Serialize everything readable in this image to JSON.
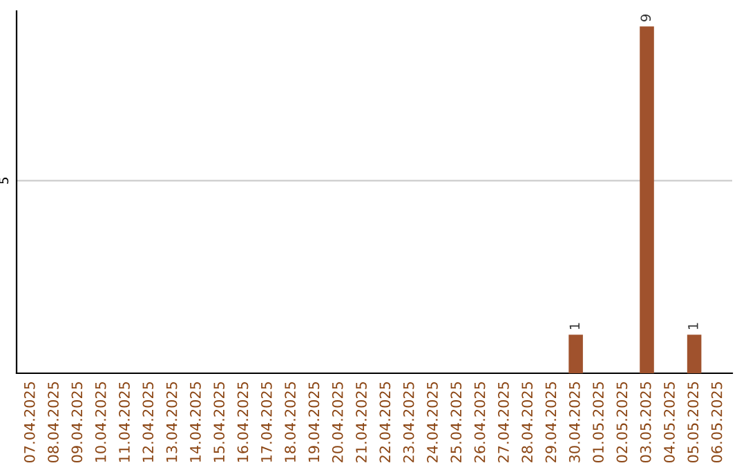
{
  "chart_data": {
    "type": "bar",
    "categories": [
      "07.04.2025",
      "08.04.2025",
      "09.04.2025",
      "10.04.2025",
      "11.04.2025",
      "12.04.2025",
      "13.04.2025",
      "14.04.2025",
      "15.04.2025",
      "16.04.2025",
      "17.04.2025",
      "18.04.2025",
      "19.04.2025",
      "20.04.2025",
      "21.04.2025",
      "22.04.2025",
      "23.04.2025",
      "24.04.2025",
      "25.04.2025",
      "26.04.2025",
      "27.04.2025",
      "28.04.2025",
      "29.04.2025",
      "30.04.2025",
      "01.05.2025",
      "02.05.2025",
      "03.05.2025",
      "04.05.2025",
      "05.05.2025",
      "06.05.2025"
    ],
    "values": [
      null,
      null,
      null,
      null,
      null,
      null,
      null,
      null,
      null,
      null,
      null,
      null,
      null,
      null,
      null,
      null,
      null,
      null,
      null,
      null,
      null,
      null,
      null,
      1,
      null,
      null,
      9,
      null,
      1,
      null
    ],
    "color": "#a0522d",
    "ylim": [
      0,
      9.4
    ],
    "yticks": [
      5
    ],
    "grid": "y",
    "data_labels": true
  }
}
